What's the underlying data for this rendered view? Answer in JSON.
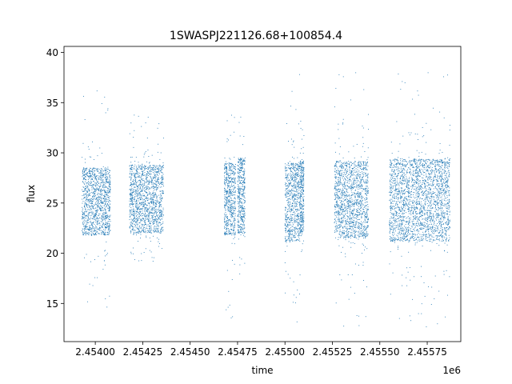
{
  "chart_data": {
    "type": "scatter",
    "title": "1SWASPJ221126.68+100854.4",
    "xlabel": "time",
    "ylabel": "flux",
    "x_offset_label": "1e6",
    "x_units_multiplier": 1000000,
    "xlim": [
      2.453835,
      2.455927
    ],
    "ylim": [
      11.2,
      40.6
    ],
    "x_tick_values": [
      2.454,
      2.45425,
      2.4545,
      2.45475,
      2.455,
      2.45525,
      2.4555,
      2.45575
    ],
    "x_tick_labels": [
      "2.45400",
      "2.45425",
      "2.45450",
      "2.45475",
      "2.45500",
      "2.45525",
      "2.45550",
      "2.45575"
    ],
    "y_ticks": [
      15,
      20,
      25,
      30,
      35,
      40
    ],
    "grid": false,
    "marker_color": "#1f77b4",
    "observing_seasons": [
      {
        "x_range": [
          2.45393,
          2.45408
        ],
        "flux_core": [
          21.8,
          28.5
        ],
        "flux_extremes": [
          13.5,
          36.7
        ]
      },
      {
        "x_range": [
          2.45418,
          2.45436
        ],
        "flux_core": [
          22.0,
          28.8
        ],
        "flux_extremes": [
          19.2,
          34.0
        ]
      },
      {
        "x_range": [
          2.45468,
          2.45474
        ],
        "flux_core": [
          21.8,
          29.0
        ],
        "flux_extremes": [
          13.5,
          34.2
        ]
      },
      {
        "x_range": [
          2.45475,
          2.45479
        ],
        "flux_core": [
          22.0,
          29.5
        ],
        "flux_extremes": [
          13.2,
          33.8
        ]
      },
      {
        "x_range": [
          2.455,
          2.45508
        ],
        "flux_core": [
          21.2,
          29.0
        ],
        "flux_extremes": [
          12.8,
          38.9
        ]
      },
      {
        "x_range": [
          2.45508,
          2.4551
        ],
        "flux_core": [
          22.0,
          29.2
        ],
        "flux_extremes": [
          20.0,
          33.6
        ]
      },
      {
        "x_range": [
          2.45526,
          2.45544
        ],
        "flux_core": [
          21.5,
          29.2
        ],
        "flux_extremes": [
          12.6,
          38.2
        ]
      },
      {
        "x_range": [
          2.45555,
          2.45587
        ],
        "flux_core": [
          21.2,
          29.4
        ],
        "flux_extremes": [
          12.6,
          38.8
        ]
      }
    ]
  }
}
